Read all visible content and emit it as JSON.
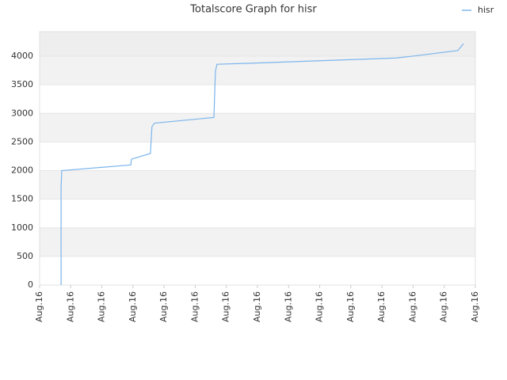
{
  "chart_data": {
    "type": "line",
    "title": "Totalscore Graph for hisr",
    "x": [
      0.69,
      0.69,
      0.71,
      2.93,
      2.95,
      3.56,
      3.61,
      3.69,
      5.6,
      5.65,
      5.7,
      6.87,
      8.91,
      11.45,
      11.96,
      13.44,
      13.62
    ],
    "series": [
      {
        "name": "hisr",
        "color": "#7cb5ec",
        "values": [
          0,
          1700,
          2000,
          2100,
          2200,
          2300,
          2770,
          2830,
          2930,
          3740,
          3860,
          3880,
          3920,
          3970,
          4000,
          4100,
          4220
        ]
      }
    ],
    "xlim": [
      0,
      14
    ],
    "xticks": [
      {
        "value": 0,
        "label": "Aug.16"
      },
      {
        "value": 1,
        "label": "Aug.16"
      },
      {
        "value": 2,
        "label": "Aug.16"
      },
      {
        "value": 3,
        "label": "Aug.16"
      },
      {
        "value": 4,
        "label": "Aug.16"
      },
      {
        "value": 5,
        "label": "Aug.16"
      },
      {
        "value": 6,
        "label": "Aug.16"
      },
      {
        "value": 7,
        "label": "Aug.16"
      },
      {
        "value": 8,
        "label": "Aug.16"
      },
      {
        "value": 9,
        "label": "Aug.16"
      },
      {
        "value": 10,
        "label": "Aug.16"
      },
      {
        "value": 11,
        "label": "Aug.16"
      },
      {
        "value": 12,
        "label": "Aug.16"
      },
      {
        "value": 13,
        "label": "Aug.16"
      },
      {
        "value": 14,
        "label": "Aug.16"
      }
    ],
    "ylim": [
      0,
      4430
    ],
    "yticks": [
      0,
      500,
      1000,
      1500,
      2000,
      2500,
      3000,
      3500,
      4000
    ],
    "grid": true,
    "legend": "top-right"
  }
}
